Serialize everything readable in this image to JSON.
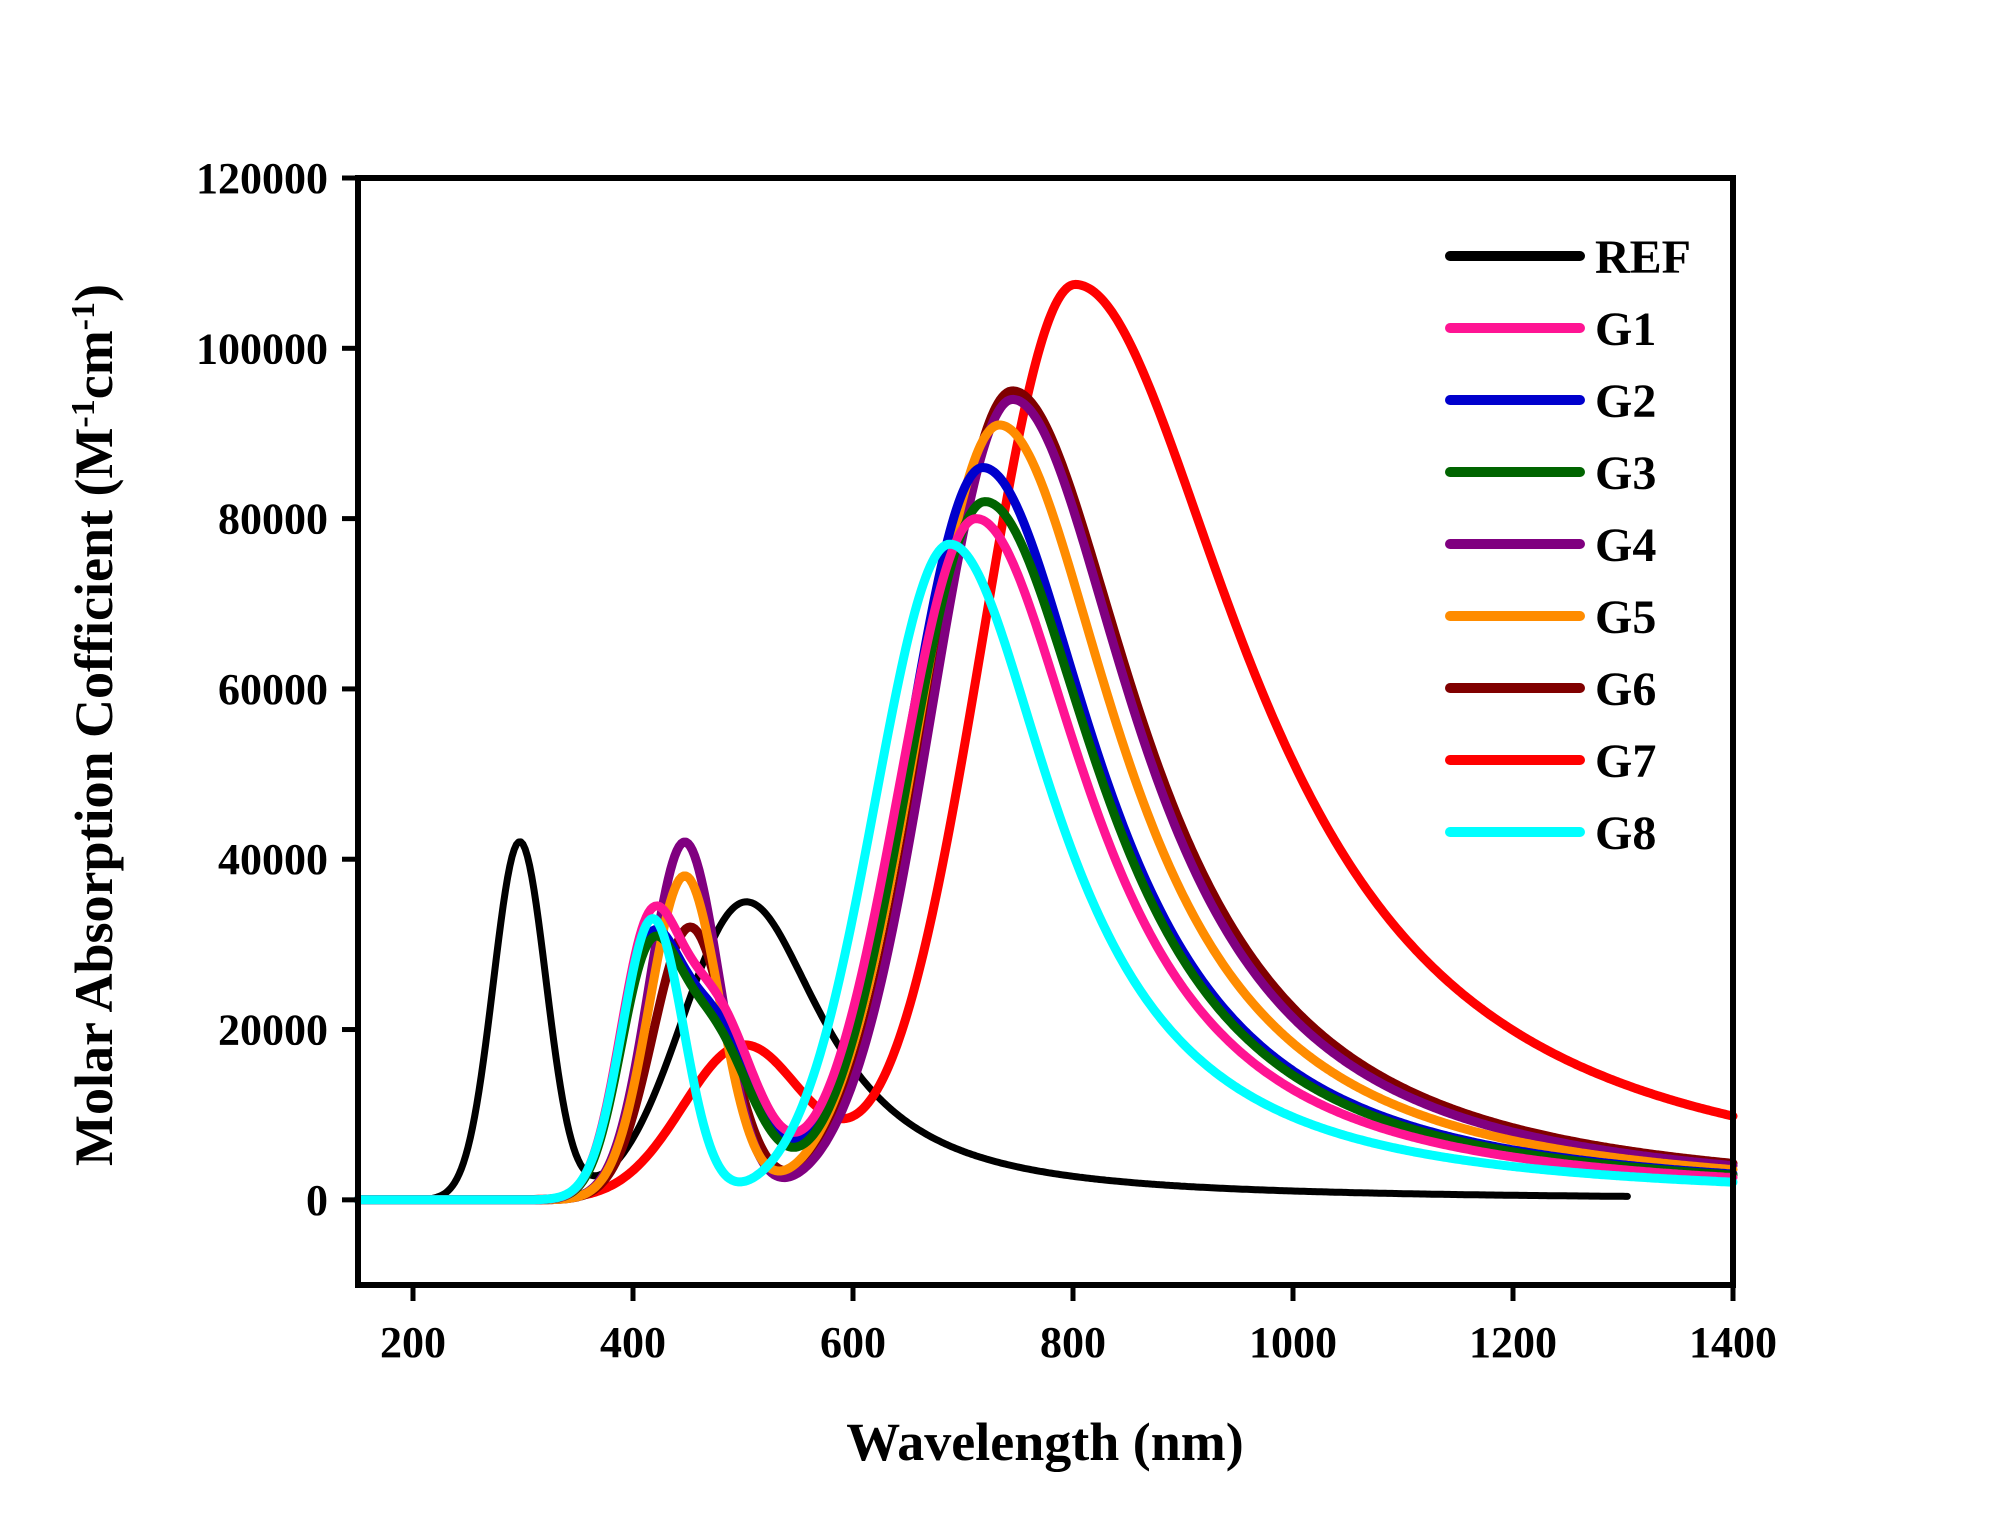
{
  "chart_data": {
    "type": "line",
    "title": "",
    "xlabel": "Wavelength (nm)",
    "ylabel": {
      "prefix": "Molar Absorption Cofficient (M",
      "sup1": "-1",
      "mid": "cm",
      "sup2": "-1",
      "suffix": ")"
    },
    "xlim": [
      150,
      1400
    ],
    "ylim": [
      -10000,
      120000
    ],
    "xticks": [
      200,
      400,
      600,
      800,
      1000,
      1200,
      1400
    ],
    "xtick_labels": [
      "200",
      "400",
      "600",
      "800",
      "1000",
      "1200",
      "1400"
    ],
    "yticks": [
      0,
      20000,
      40000,
      60000,
      80000,
      100000,
      120000
    ],
    "ytick_labels": [
      "0",
      "20000",
      "40000",
      "60000",
      "80000",
      "100000",
      "120000"
    ],
    "legend_position": "top-right",
    "grid": false,
    "series": [
      {
        "name": "REF",
        "color": "#000000",
        "x_range": [
          150,
          1305
        ],
        "peaks": [
          {
            "center": 297,
            "height": 42000,
            "width": 24
          },
          {
            "center": 503,
            "height": 35000,
            "width": 58,
            "tail": 110
          }
        ]
      },
      {
        "name": "G1",
        "color": "#ff1493",
        "x_range": [
          150,
          1400
        ],
        "peaks": [
          {
            "center": 412,
            "height": 26000,
            "width": 26
          },
          {
            "center": 470,
            "height": 23000,
            "width": 38
          },
          {
            "center": 712,
            "height": 80000,
            "width": 70,
            "tail": 160
          }
        ]
      },
      {
        "name": "G2",
        "color": "#0000cd",
        "x_range": [
          150,
          1400
        ],
        "peaks": [
          {
            "center": 412,
            "height": 24000,
            "width": 26
          },
          {
            "center": 470,
            "height": 21000,
            "width": 38
          },
          {
            "center": 718,
            "height": 86000,
            "width": 70,
            "tail": 165
          }
        ]
      },
      {
        "name": "G3",
        "color": "#006400",
        "x_range": [
          150,
          1400
        ],
        "peaks": [
          {
            "center": 412,
            "height": 23000,
            "width": 26
          },
          {
            "center": 468,
            "height": 20000,
            "width": 38
          },
          {
            "center": 720,
            "height": 82000,
            "width": 70,
            "tail": 165
          }
        ]
      },
      {
        "name": "G4",
        "color": "#800080",
        "x_range": [
          150,
          1400
        ],
        "peaks": [
          {
            "center": 447,
            "height": 42000,
            "width": 32
          },
          {
            "center": 745,
            "height": 94000,
            "width": 74,
            "tail": 175
          }
        ]
      },
      {
        "name": "G5",
        "color": "#ff8c00",
        "x_range": [
          150,
          1400
        ],
        "peaks": [
          {
            "center": 447,
            "height": 38000,
            "width": 32
          },
          {
            "center": 733,
            "height": 91000,
            "width": 74,
            "tail": 170
          }
        ]
      },
      {
        "name": "G6",
        "color": "#800000",
        "x_range": [
          150,
          1400
        ],
        "peaks": [
          {
            "center": 452,
            "height": 32000,
            "width": 34
          },
          {
            "center": 745,
            "height": 95000,
            "width": 75,
            "tail": 180
          }
        ]
      },
      {
        "name": "G7",
        "color": "#ff0000",
        "x_range": [
          150,
          1400
        ],
        "peaks": [
          {
            "center": 500,
            "height": 18000,
            "width": 55
          },
          {
            "center": 802,
            "height": 107500,
            "width": 85,
            "tail": 240
          }
        ]
      },
      {
        "name": "G8",
        "color": "#00ffff",
        "x_range": [
          150,
          1400
        ],
        "peaks": [
          {
            "center": 418,
            "height": 33000,
            "width": 28
          },
          {
            "center": 688,
            "height": 77000,
            "width": 68,
            "tail": 150
          }
        ]
      }
    ]
  }
}
